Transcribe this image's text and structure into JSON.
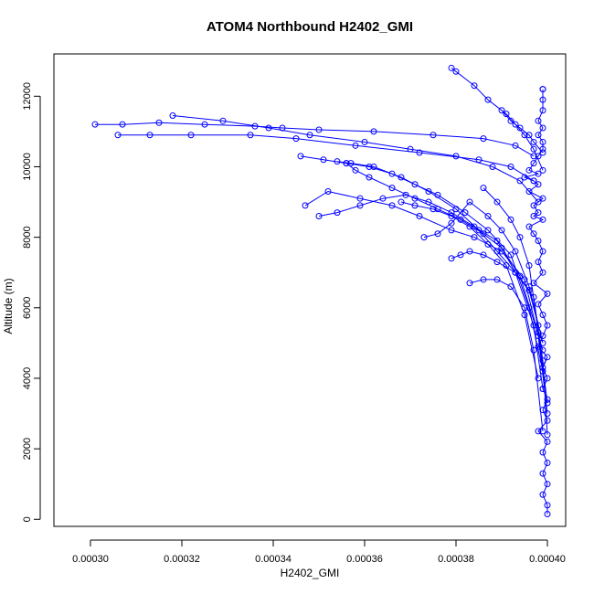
{
  "chart_data": {
    "type": "scatter",
    "title": "ATOM4 Northbound H2402_GMI",
    "xlabel": "H2402_GMI",
    "ylabel": "Altitude (m)",
    "xlim": [
      0.000292,
      0.000404
    ],
    "ylim": [
      -200,
      13200
    ],
    "x_ticks": [
      0.0003,
      0.00032,
      0.00034,
      0.00036,
      0.00038,
      0.0004
    ],
    "x_tick_labels": [
      "0.00030",
      "0.00032",
      "0.00034",
      "0.00036",
      "0.00038",
      "0.00040"
    ],
    "y_ticks": [
      0,
      2000,
      4000,
      6000,
      8000,
      10000,
      12000
    ],
    "y_tick_labels": [
      "0",
      "2000",
      "4000",
      "6000",
      "8000",
      "10000",
      "12000"
    ],
    "grid": false,
    "line_color": "#0000ff",
    "series": [
      {
        "x": [
          0.0004,
          0.0004,
          0.000399,
          0.0004,
          0.000399,
          0.0004,
          0.000399,
          0.0004,
          0.000398,
          0.0004,
          0.000399,
          0.0004,
          0.000399,
          0.0004,
          0.000399,
          0.0004,
          0.000398,
          0.000399,
          0.0004,
          0.000399,
          0.000398,
          0.0004,
          0.000397,
          0.000399,
          0.000398,
          0.000399,
          0.000398,
          0.000397,
          0.000396,
          0.000399,
          0.000397,
          0.000398,
          0.000397,
          0.000399,
          0.000396,
          0.000398,
          0.000397,
          0.000395,
          0.000398,
          0.000396,
          0.000397,
          0.000398,
          0.000399,
          0.000399,
          0.000398,
          0.000399,
          0.000398,
          0.000399,
          0.000399,
          0.000399,
          0.000399
        ],
        "y": [
          150,
          400,
          700,
          1000,
          1300,
          1600,
          1900,
          2200,
          2500,
          2800,
          3100,
          3400,
          3700,
          4000,
          4300,
          4600,
          4900,
          5200,
          5500,
          5800,
          6100,
          6400,
          6700,
          7000,
          7300,
          7600,
          7900,
          8100,
          8300,
          8500,
          8600,
          8700,
          8900,
          9100,
          9300,
          9500,
          9600,
          9700,
          9800,
          9900,
          10100,
          10300,
          10500,
          10700,
          10900,
          11100,
          11300,
          11600,
          11900,
          12200,
          12200
        ]
      },
      {
        "x": [
          0.0004,
          0.000399,
          0.000397,
          0.000393,
          0.00039,
          0.000386,
          0.000381,
          0.000376,
          0.000371,
          0.000366,
          0.000361,
          0.000358,
          0.000356
        ],
        "y": [
          2400,
          4500,
          6300,
          7000,
          7700,
          8100,
          8500,
          8800,
          9100,
          9400,
          9700,
          9900,
          10100
        ]
      },
      {
        "x": [
          0.0004,
          0.000398,
          0.000395,
          0.00039,
          0.000384,
          0.000379,
          0.000372,
          0.000366,
          0.000359,
          0.000352,
          0.000347
        ],
        "y": [
          3000,
          5200,
          6800,
          7600,
          8000,
          8200,
          8600,
          8900,
          9100,
          9300,
          8900
        ]
      },
      {
        "x": [
          0.000399,
          0.000397,
          0.000393,
          0.000389,
          0.000385,
          0.00038,
          0.000374,
          0.000368,
          0.000362,
          0.000357,
          0.000354
        ],
        "y": [
          3700,
          5500,
          7000,
          7600,
          8200,
          8800,
          9300,
          9700,
          10000,
          10100,
          10150
        ]
      },
      {
        "x": [
          0.000399,
          0.000396,
          0.000392,
          0.000387,
          0.000382,
          0.000376,
          0.000371,
          0.000366,
          0.000361,
          0.000356,
          0.000351,
          0.000346
        ],
        "y": [
          4200,
          6000,
          7500,
          8200,
          8700,
          9200,
          9500,
          9800,
          10000,
          10100,
          10200,
          10300
        ]
      },
      {
        "x": [
          0.000398,
          0.000395,
          0.000391,
          0.000387,
          0.000383,
          0.000379,
          0.000375,
          0.000371,
          0.000368
        ],
        "y": [
          4000,
          5800,
          7200,
          7800,
          8300,
          8600,
          8800,
          8900,
          9000
        ]
      },
      {
        "x": [
          0.000399,
          0.000396,
          0.000393,
          0.00039,
          0.000387,
          0.000383,
          0.000379,
          0.000376,
          0.000373
        ],
        "y": [
          5000,
          6600,
          7600,
          8200,
          8600,
          9000,
          8400,
          8100,
          8000
        ]
      },
      {
        "x": [
          0.000399,
          0.000394,
          0.000389,
          0.000384,
          0.000379,
          0.000374,
          0.000369,
          0.000364,
          0.000359,
          0.000354,
          0.00035
        ],
        "y": [
          4800,
          6900,
          7900,
          8300,
          8700,
          9000,
          9200,
          9100,
          8900,
          8700,
          8600
        ]
      },
      {
        "x": [
          0.000398,
          0.000396,
          0.000393,
          0.000389,
          0.000386,
          0.000383,
          0.000381,
          0.000379
        ],
        "y": [
          5500,
          6500,
          7000,
          7300,
          7500,
          7600,
          7500,
          7400
        ]
      },
      {
        "x": [
          0.000399,
          0.000397,
          0.000395,
          0.000392,
          0.000389,
          0.000386,
          0.000383
        ],
        "y": [
          2500,
          4800,
          6000,
          6600,
          6800,
          6800,
          6700
        ]
      },
      {
        "x": [
          0.0004,
          0.000398,
          0.000396,
          0.000394,
          0.000392,
          0.000389,
          0.000386
        ],
        "y": [
          3300,
          5300,
          7200,
          8000,
          8500,
          9000,
          9400
        ]
      },
      {
        "x": [
          0.000397,
          0.000393,
          0.000386,
          0.000375,
          0.000362,
          0.00035,
          0.000342,
          0.000336,
          0.000325,
          0.000315,
          0.000307,
          0.000301
        ],
        "y": [
          10300,
          10600,
          10800,
          10900,
          11000,
          11050,
          11100,
          11150,
          11200,
          11250,
          11200,
          11200
        ]
      },
      {
        "x": [
          0.000397,
          0.000392,
          0.000385,
          0.000372,
          0.000358,
          0.000345,
          0.000335,
          0.000322,
          0.000313,
          0.000306
        ],
        "y": [
          9600,
          10000,
          10200,
          10400,
          10600,
          10800,
          10900,
          10900,
          10900,
          10900
        ]
      },
      {
        "x": [
          0.000398,
          0.000394,
          0.000388,
          0.00038,
          0.00037,
          0.00036,
          0.000348,
          0.000339,
          0.000329,
          0.000318
        ],
        "y": [
          9000,
          9600,
          10000,
          10300,
          10500,
          10700,
          10900,
          11100,
          11300,
          11450
        ]
      },
      {
        "x": [
          0.000399,
          0.000397,
          0.000395,
          0.000393,
          0.000391,
          0.000387,
          0.000384,
          0.00038,
          0.000379
        ],
        "y": [
          9900,
          10500,
          10900,
          11200,
          11500,
          11900,
          12300,
          12700,
          12800
        ]
      },
      {
        "x": [
          0.000399,
          0.000397,
          0.000396,
          0.000394,
          0.000392,
          0.00039
        ],
        "y": [
          10400,
          10700,
          10900,
          11100,
          11300,
          11600
        ]
      }
    ]
  }
}
